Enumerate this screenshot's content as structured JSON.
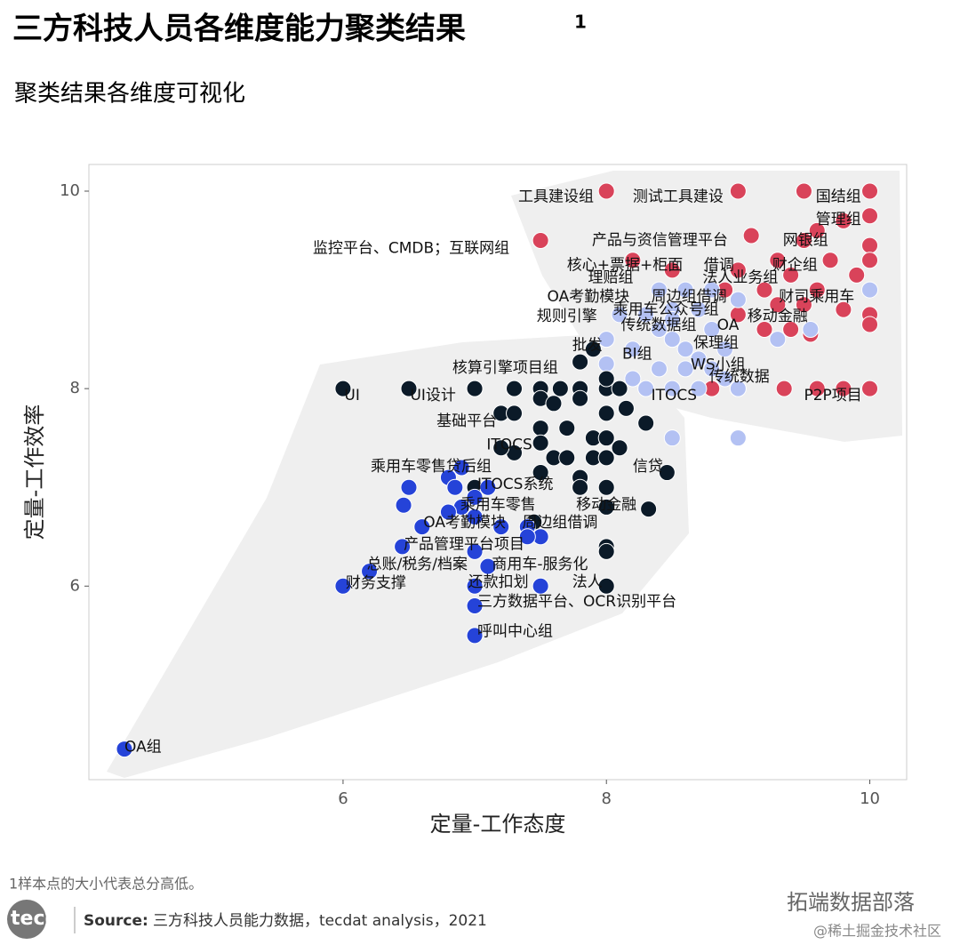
{
  "header": {
    "title": "三方科技人员各维度能力聚类结果",
    "title_sup": "1",
    "subtitle": "聚类结果各维度可视化"
  },
  "chart_data": {
    "type": "scatter",
    "x_label": "定量-工作态度",
    "y_label": "定量-工作效率",
    "xlim": [
      4.07,
      10.28
    ],
    "ylim": [
      4.04,
      10.27
    ],
    "xticks": [
      6,
      8,
      10
    ],
    "yticks": [
      6,
      8,
      10
    ],
    "series": [
      {
        "color": "#d9435a",
        "x": [
          8,
          9,
          9.5,
          10,
          10,
          9.8,
          9.6,
          7.5,
          9.1,
          9.5,
          10,
          10,
          9.7,
          9.3,
          9.0,
          9.9,
          9.4,
          9.6,
          9.2,
          8.9,
          9.5,
          9.8,
          10,
          10,
          9.3,
          9.0,
          9.4,
          9.55,
          9.2,
          8.8,
          9,
          9.35,
          9.8,
          10,
          9.6,
          8.2,
          8.5
        ],
        "y": [
          10,
          10,
          10,
          10,
          9.75,
          9.7,
          9.6,
          9.5,
          9.55,
          9.5,
          9.45,
          9.3,
          9.3,
          9.3,
          9.2,
          9.15,
          9.15,
          9.0,
          9.0,
          9.0,
          8.85,
          8.8,
          8.75,
          8.65,
          8.85,
          8.75,
          8.6,
          8.55,
          8.6,
          8.0,
          8.0,
          8.0,
          8.0,
          8.0,
          8.0,
          9.3,
          9.2
        ]
      },
      {
        "color": "#b3c1f3",
        "x": [
          8,
          8,
          8.2,
          8.4,
          8.5,
          8.6,
          8.7,
          8.8,
          8.9,
          9.0,
          8.3,
          8.5,
          8.7,
          8.8,
          8.5,
          8.6,
          8.8,
          8.4,
          8.7,
          9.0,
          10,
          9.55,
          8.5,
          9,
          8.1,
          8.3,
          8.5,
          8.9,
          8.6,
          8.4,
          8.2,
          9.3
        ],
        "y": [
          8.5,
          8.25,
          8.4,
          8.6,
          8.5,
          8.4,
          8.3,
          8.2,
          8.1,
          8.0,
          8.0,
          8.0,
          8.0,
          8.6,
          8.8,
          9.0,
          9.0,
          9.0,
          8.8,
          8.9,
          9.0,
          8.6,
          7.5,
          7.5,
          8.75,
          8.75,
          8.7,
          8.4,
          8.2,
          8.2,
          8.1,
          8.5
        ]
      },
      {
        "color": "#0b1a28",
        "x": [
          6,
          6.5,
          7,
          7.3,
          7.5,
          7.65,
          7.8,
          8,
          8.1,
          7.8,
          7.9,
          8.0,
          7.2,
          7.3,
          7.5,
          7.6,
          7.8,
          8,
          8.15,
          8.3,
          7.5,
          7.7,
          7.9,
          8,
          8.1,
          7.3,
          7.5,
          7.6,
          7.7,
          7.8,
          7.9,
          8,
          7.5,
          7.8,
          8,
          8.46,
          8,
          8.32,
          7.45,
          8,
          8,
          8,
          7.2,
          7.0
        ],
        "y": [
          8,
          8,
          8,
          8,
          8,
          8,
          8,
          8,
          8,
          8.27,
          8.4,
          8.1,
          7.75,
          7.75,
          7.9,
          7.85,
          7.9,
          7.75,
          7.8,
          7.65,
          7.6,
          7.6,
          7.5,
          7.5,
          7.4,
          7.35,
          7.45,
          7.3,
          7.3,
          7.1,
          7.3,
          7.3,
          7.15,
          7.0,
          7.0,
          7.15,
          6.8,
          6.78,
          6.65,
          6.4,
          6.35,
          6.0,
          7.4,
          7.0
        ]
      },
      {
        "color": "#2543d8",
        "x": [
          6.5,
          6.46,
          6.8,
          6.9,
          6.85,
          7.0,
          7.1,
          6.9,
          6.8,
          7.0,
          7.2,
          7.4,
          7.5,
          6.6,
          6.45,
          6.2,
          7.0,
          7.1,
          7.0,
          7.5,
          6.0,
          7.0,
          7.0,
          7.4,
          4.34
        ],
        "y": [
          7.0,
          6.82,
          7.1,
          7.2,
          7.0,
          6.9,
          7.0,
          6.8,
          6.75,
          6.7,
          6.6,
          6.6,
          6.5,
          6.6,
          6.4,
          6.15,
          6.35,
          6.2,
          6.0,
          6.0,
          6.0,
          5.8,
          5.5,
          6.5,
          4.35
        ]
      }
    ],
    "annotations": [
      {
        "text": "工具建设组",
        "x": 7.33,
        "y": 9.94
      },
      {
        "text": "测试工具建设",
        "x": 8.2,
        "y": 9.94
      },
      {
        "text": "国结组",
        "x": 9.59,
        "y": 9.94
      },
      {
        "text": "管理组",
        "x": 9.59,
        "y": 9.71
      },
      {
        "text": "监控平台、CMDB；互联网组",
        "x": 5.77,
        "y": 9.42
      },
      {
        "text": "产品与资信管理平台",
        "x": 7.89,
        "y": 9.5
      },
      {
        "text": "网银组",
        "x": 9.34,
        "y": 9.5
      },
      {
        "text": "核心+票据+柜面",
        "x": 7.7,
        "y": 9.25
      },
      {
        "text": "借调",
        "x": 8.74,
        "y": 9.25
      },
      {
        "text": "财企组",
        "x": 9.26,
        "y": 9.25
      },
      {
        "text": "理赔组",
        "x": 7.86,
        "y": 9.12
      },
      {
        "text": "法人业务组",
        "x": 8.73,
        "y": 9.12
      },
      {
        "text": "OA考勤模块",
        "x": 7.55,
        "y": 8.93
      },
      {
        "text": "周边组借调",
        "x": 8.34,
        "y": 8.93
      },
      {
        "text": "财司乘用车",
        "x": 9.31,
        "y": 8.93
      },
      {
        "text": "乘用车公众号组",
        "x": 8.05,
        "y": 8.8
      },
      {
        "text": "规则引擎",
        "x": 7.47,
        "y": 8.73
      },
      {
        "text": "移动金融",
        "x": 9.07,
        "y": 8.73
      },
      {
        "text": "传统数据组",
        "x": 8.11,
        "y": 8.64
      },
      {
        "text": "OA",
        "x": 8.84,
        "y": 8.64
      },
      {
        "text": "批发",
        "x": 7.74,
        "y": 8.44
      },
      {
        "text": "保理组",
        "x": 8.66,
        "y": 8.46
      },
      {
        "text": "BI组",
        "x": 8.12,
        "y": 8.35
      },
      {
        "text": "核算引擎项目组",
        "x": 6.83,
        "y": 8.21
      },
      {
        "text": "WS小组",
        "x": 8.64,
        "y": 8.24
      },
      {
        "text": "传统数据",
        "x": 8.78,
        "y": 8.12
      },
      {
        "text": "UI",
        "x": 6.01,
        "y": 7.93
      },
      {
        "text": "UI设计",
        "x": 6.51,
        "y": 7.93
      },
      {
        "text": "ITOCS",
        "x": 8.34,
        "y": 7.93
      },
      {
        "text": "P2P项目",
        "x": 9.5,
        "y": 7.93
      },
      {
        "text": "基础平台",
        "x": 6.71,
        "y": 7.67
      },
      {
        "text": "ITOCS",
        "x": 7.09,
        "y": 7.43
      },
      {
        "text": "乘用车零售贷后组",
        "x": 6.21,
        "y": 7.21
      },
      {
        "text": "信贷",
        "x": 8.2,
        "y": 7.21
      },
      {
        "text": "ITOCS系统",
        "x": 7.02,
        "y": 7.03
      },
      {
        "text": "乘用车零售",
        "x": 6.89,
        "y": 6.82
      },
      {
        "text": "移动金融",
        "x": 7.77,
        "y": 6.82
      },
      {
        "text": "OA考勤模块",
        "x": 6.61,
        "y": 6.64
      },
      {
        "text": "周边组借调",
        "x": 7.36,
        "y": 6.64
      },
      {
        "text": "产品管理平台项目",
        "x": 6.46,
        "y": 6.42
      },
      {
        "text": "总账/税务/档案",
        "x": 6.18,
        "y": 6.22
      },
      {
        "text": "商用车-服务化",
        "x": 7.13,
        "y": 6.22
      },
      {
        "text": "财务支撑",
        "x": 6.02,
        "y": 6.03
      },
      {
        "text": "还款扣划",
        "x": 6.95,
        "y": 6.04
      },
      {
        "text": "法人",
        "x": 7.74,
        "y": 6.04
      },
      {
        "text": "三方数据平台、OCR识别平台",
        "x": 7.02,
        "y": 5.84
      },
      {
        "text": "呼叫中心组",
        "x": 7.02,
        "y": 5.54
      },
      {
        "text": "OA组",
        "x": 4.34,
        "y": 4.37
      }
    ]
  },
  "footer": {
    "footnote": "1样本点的大小代表总分高低。",
    "logo": "tecdat",
    "source_label": "Source:",
    "source_text": "三方科技人员能力数据，tecdat analysis，2021",
    "watermark": "拓端数据部落",
    "watermark2": "@稀土掘金技术社区"
  }
}
